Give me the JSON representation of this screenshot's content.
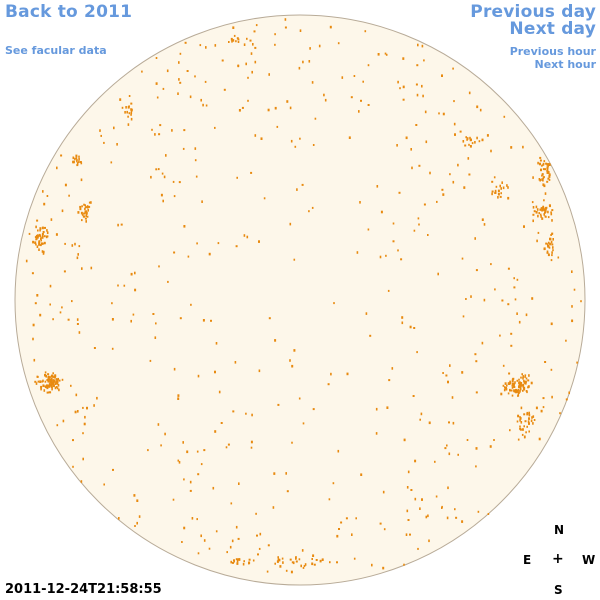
{
  "nav": {
    "back_label": "Back to 2011",
    "facular_label": "See facular data",
    "prev_day_label": "Previous day",
    "next_day_label": "Next day",
    "prev_hour_label": "Previous hour",
    "next_hour_label": "Next hour"
  },
  "compass": {
    "north": "N",
    "east": "E",
    "center": "+",
    "west": "W",
    "south": "S"
  },
  "timestamp": "2011-12-24T21:58:55",
  "colors": {
    "link": "#6699dd",
    "disk_fill": "#fdf7ea",
    "disk_edge": "#b8ab98",
    "plage": "#e88a10",
    "text": "#000000"
  },
  "icons": [
    "solar-disk-image",
    "compass-rose-icon"
  ]
}
